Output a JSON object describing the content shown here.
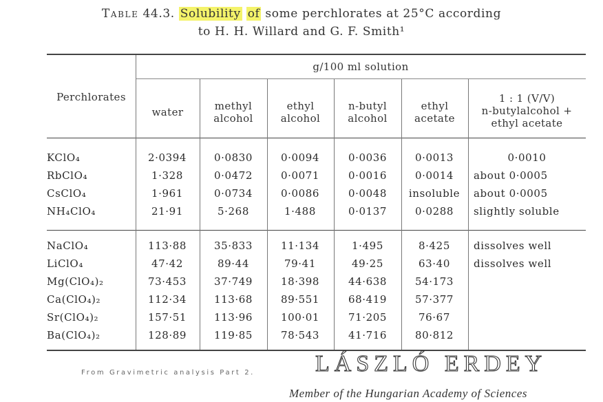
{
  "caption": {
    "table_label": "Table",
    "table_number": "44.3.",
    "highlight_1": "Solubility",
    "between_1": " ",
    "highlight_2": "of",
    "rest_line1": " some perchlorates at 25°C according",
    "line2": "to H. H. Willard and G. F. Smith¹"
  },
  "table": {
    "row_header": "Perchlorates",
    "group_header": "g/100 ml solution",
    "columns": [
      [
        "water"
      ],
      [
        "methyl",
        "alcohol"
      ],
      [
        "ethyl",
        "alcohol"
      ],
      [
        "n-butyl",
        "alcohol"
      ],
      [
        "ethyl",
        "acetate"
      ],
      [
        "1 : 1 (V/V)",
        "n-butylalcohol +",
        "ethyl acetate"
      ]
    ],
    "group1": [
      {
        "name": "KClO₄",
        "values": [
          "2·0394",
          "0·0830",
          "0·0094",
          "0·0036",
          "0·0013",
          "0·0010"
        ]
      },
      {
        "name": "RbClO₄",
        "values": [
          "1·328",
          "0·0472",
          "0·0071",
          "0·0016",
          "0·0014",
          "about 0·0005"
        ]
      },
      {
        "name": "CsClO₄",
        "values": [
          "1·961",
          "0·0734",
          "0·0086",
          "0·0048",
          "insoluble",
          "about 0·0005"
        ]
      },
      {
        "name": "NH₄ClO₄",
        "values": [
          "21·91",
          "5·268",
          "1·488",
          "0·0137",
          "0·0288",
          "slightly soluble"
        ]
      }
    ],
    "group2": [
      {
        "name": "NaClO₄",
        "values": [
          "113·88",
          "35·833",
          "11·134",
          "1·495",
          "8·425",
          "dissolves well"
        ]
      },
      {
        "name": "LiClO₄",
        "values": [
          "47·42",
          "89·44",
          "79·41",
          "49·25",
          "63·40",
          "dissolves well"
        ]
      },
      {
        "name": "Mg(ClO₄)₂",
        "values": [
          "73·453",
          "37·749",
          "18·398",
          "44·638",
          "54·173",
          ""
        ]
      },
      {
        "name": "Ca(ClO₄)₂",
        "values": [
          "112·34",
          "113·68",
          "89·551",
          "68·419",
          "57·377",
          ""
        ]
      },
      {
        "name": "Sr(ClO₄)₂",
        "values": [
          "157·51",
          "113·96",
          "100·01",
          "71·205",
          "76·67",
          ""
        ]
      },
      {
        "name": "Ba(ClO₄)₂",
        "values": [
          "128·89",
          "119·85",
          "78·543",
          "41·716",
          "80·812",
          ""
        ]
      }
    ]
  },
  "footer": {
    "source_note": "From Gravimetric analysis Part 2.",
    "author": "LÁSZLÓ ERDEY",
    "affiliation": "Member of the Hungarian Academy of Sciences"
  }
}
